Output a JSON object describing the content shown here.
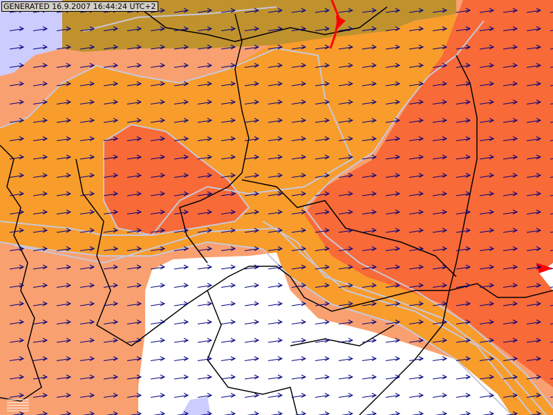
{
  "header": {
    "generated_label": "GENERATED 16.9.2007 16:44:24 UTC+2"
  },
  "map": {
    "type": "wind-field overlay map",
    "colors": {
      "sea": "#ccccff",
      "olive_zone": "#c0922e",
      "orange_zone": "#f89c2c",
      "salmon_zone": "#f9a070",
      "red_zone": "#f86a38",
      "no_data": "#ffffff",
      "contour": "#c8c8d8",
      "border": "#000000",
      "wind_arrow": "#000080",
      "front": "#ff0000"
    },
    "wind_direction": "west-to-east",
    "legend_icon": "bar-legend-icon"
  }
}
